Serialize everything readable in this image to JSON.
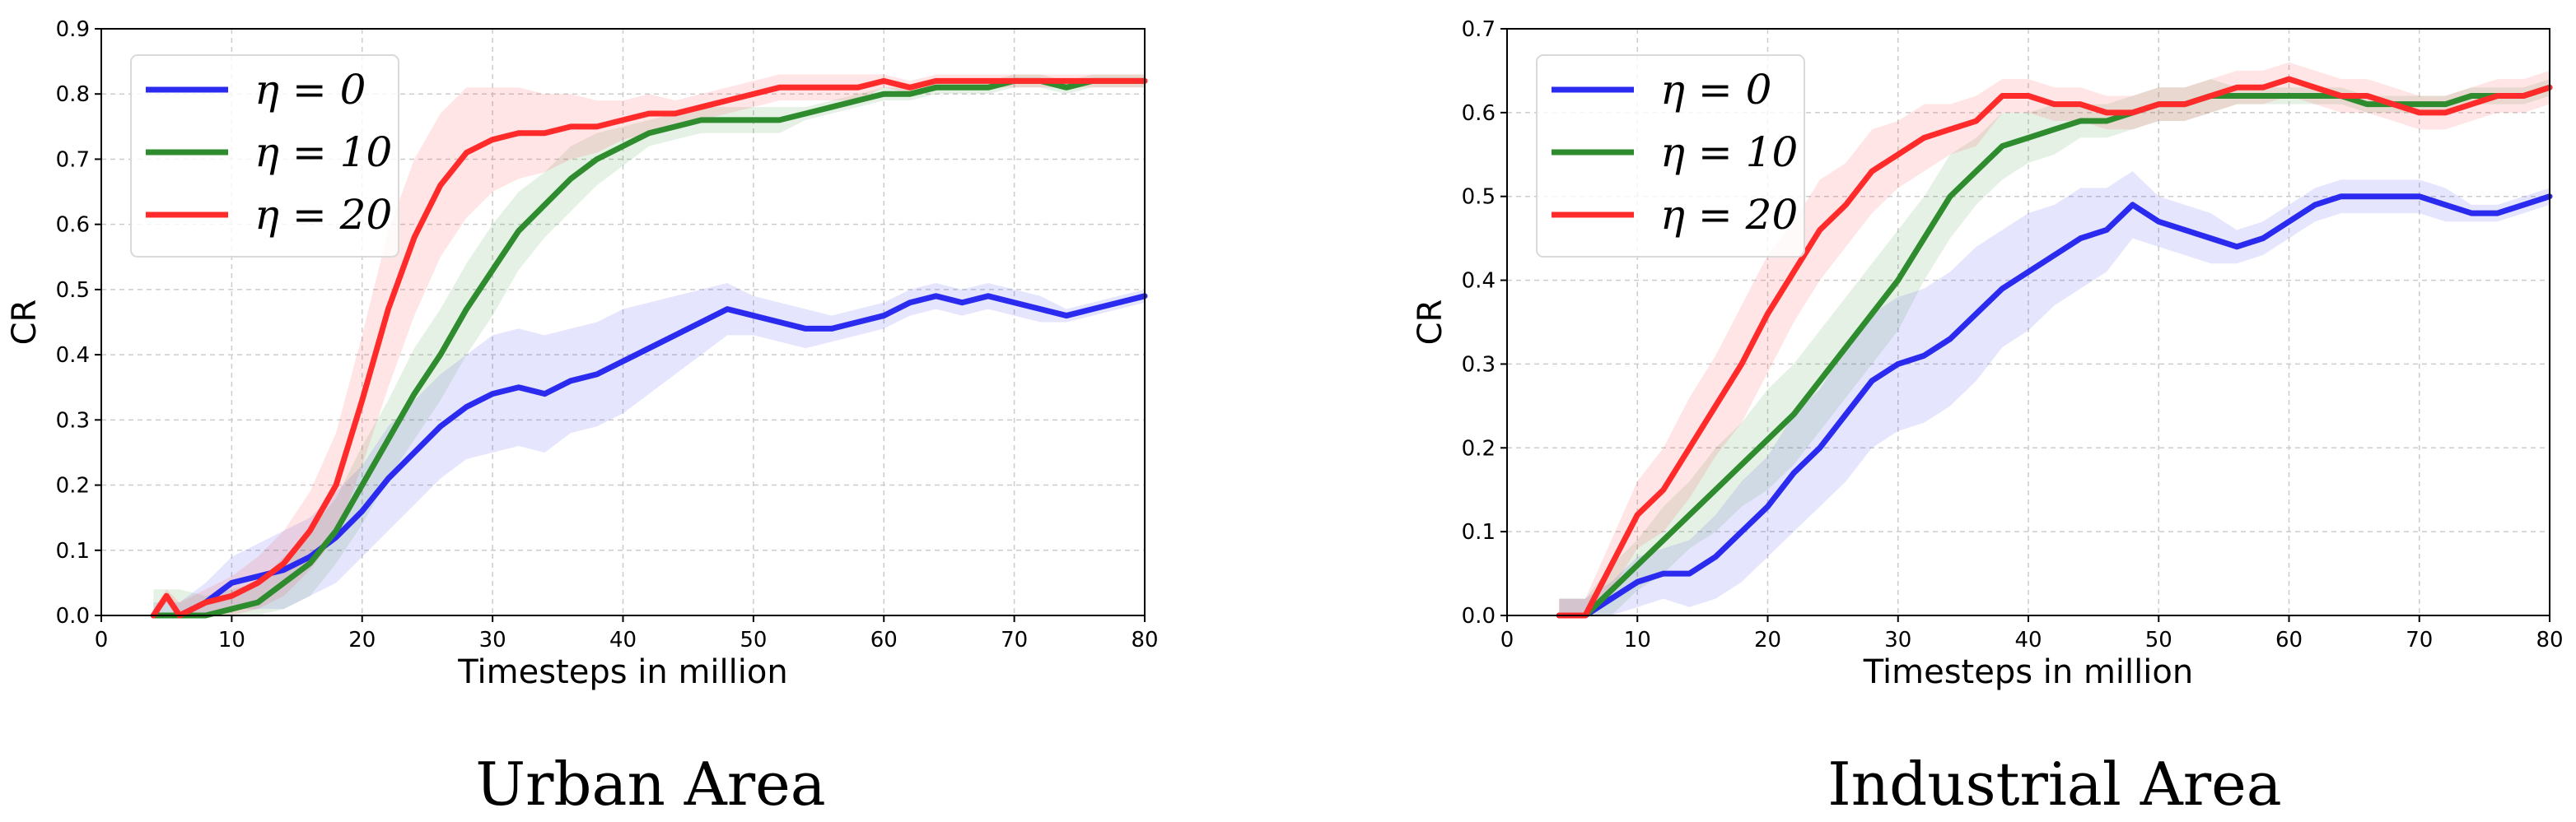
{
  "chart_data": [
    {
      "type": "line",
      "title": "Urban Area",
      "xlabel": "Timesteps in million",
      "ylabel": "CR",
      "xlim": [
        0,
        80
      ],
      "ylim": [
        0,
        0.9
      ],
      "xticks": [
        0,
        10,
        20,
        30,
        40,
        50,
        60,
        70,
        80
      ],
      "yticks": [
        0.0,
        0.1,
        0.2,
        0.3,
        0.4,
        0.5,
        0.6,
        0.7,
        0.8,
        0.9
      ],
      "grid": true,
      "legend": "top-left",
      "series": [
        {
          "name": "η = 0",
          "color": "#2b2bf0",
          "x": [
            4,
            6,
            8,
            10,
            12,
            14,
            16,
            18,
            20,
            22,
            24,
            26,
            28,
            30,
            32,
            34,
            36,
            38,
            40,
            42,
            44,
            46,
            48,
            50,
            52,
            54,
            56,
            58,
            60,
            62,
            64,
            66,
            68,
            70,
            72,
            74,
            76,
            78,
            80
          ],
          "y": [
            0.0,
            0.0,
            0.02,
            0.05,
            0.06,
            0.07,
            0.09,
            0.12,
            0.16,
            0.21,
            0.25,
            0.29,
            0.32,
            0.34,
            0.35,
            0.34,
            0.36,
            0.37,
            0.39,
            0.41,
            0.43,
            0.45,
            0.47,
            0.46,
            0.45,
            0.44,
            0.44,
            0.45,
            0.46,
            0.48,
            0.49,
            0.48,
            0.49,
            0.48,
            0.47,
            0.46,
            0.47,
            0.48,
            0.49
          ],
          "band": [
            0.02,
            0.02,
            0.03,
            0.04,
            0.05,
            0.06,
            0.06,
            0.07,
            0.07,
            0.08,
            0.08,
            0.08,
            0.08,
            0.09,
            0.09,
            0.09,
            0.08,
            0.08,
            0.08,
            0.07,
            0.06,
            0.05,
            0.04,
            0.03,
            0.03,
            0.03,
            0.02,
            0.02,
            0.02,
            0.02,
            0.02,
            0.02,
            0.02,
            0.02,
            0.02,
            0.01,
            0.01,
            0.01,
            0.01
          ]
        },
        {
          "name": "η = 10",
          "color": "#2e8b2e",
          "x": [
            4,
            6,
            8,
            10,
            12,
            14,
            16,
            18,
            20,
            22,
            24,
            26,
            28,
            30,
            32,
            34,
            36,
            38,
            40,
            42,
            44,
            46,
            48,
            50,
            52,
            54,
            56,
            58,
            60,
            62,
            64,
            66,
            68,
            70,
            72,
            74,
            76,
            78,
            80
          ],
          "y": [
            0.0,
            0.0,
            0.0,
            0.01,
            0.02,
            0.05,
            0.08,
            0.13,
            0.2,
            0.27,
            0.34,
            0.4,
            0.47,
            0.53,
            0.59,
            0.63,
            0.67,
            0.7,
            0.72,
            0.74,
            0.75,
            0.76,
            0.76,
            0.76,
            0.76,
            0.77,
            0.78,
            0.79,
            0.8,
            0.8,
            0.81,
            0.81,
            0.81,
            0.82,
            0.82,
            0.81,
            0.82,
            0.82,
            0.82
          ],
          "band": [
            0.04,
            0.04,
            0.03,
            0.03,
            0.03,
            0.04,
            0.05,
            0.05,
            0.06,
            0.06,
            0.07,
            0.07,
            0.07,
            0.07,
            0.06,
            0.05,
            0.05,
            0.04,
            0.03,
            0.02,
            0.02,
            0.02,
            0.02,
            0.02,
            0.02,
            0.01,
            0.01,
            0.01,
            0.01,
            0.01,
            0.01,
            0.01,
            0.01,
            0.01,
            0.01,
            0.01,
            0.01,
            0.01,
            0.01
          ]
        },
        {
          "name": "η = 20",
          "color": "#ff2b2b",
          "x": [
            4,
            5,
            6,
            8,
            10,
            12,
            14,
            16,
            18,
            20,
            22,
            24,
            26,
            28,
            30,
            32,
            34,
            36,
            38,
            40,
            42,
            44,
            46,
            48,
            50,
            52,
            54,
            56,
            58,
            60,
            62,
            64,
            66,
            68,
            70,
            72,
            74,
            76,
            78,
            80
          ],
          "y": [
            0.0,
            0.03,
            0.0,
            0.02,
            0.03,
            0.05,
            0.08,
            0.13,
            0.2,
            0.33,
            0.47,
            0.58,
            0.66,
            0.71,
            0.73,
            0.74,
            0.74,
            0.75,
            0.75,
            0.76,
            0.77,
            0.77,
            0.78,
            0.79,
            0.8,
            0.81,
            0.81,
            0.81,
            0.81,
            0.82,
            0.81,
            0.82,
            0.82,
            0.82,
            0.82,
            0.82,
            0.82,
            0.82,
            0.82,
            0.82
          ],
          "band": [
            0.01,
            0.01,
            0.02,
            0.02,
            0.03,
            0.04,
            0.05,
            0.06,
            0.08,
            0.1,
            0.12,
            0.12,
            0.11,
            0.1,
            0.08,
            0.07,
            0.06,
            0.05,
            0.04,
            0.03,
            0.03,
            0.02,
            0.02,
            0.02,
            0.02,
            0.02,
            0.02,
            0.02,
            0.02,
            0.01,
            0.01,
            0.01,
            0.01,
            0.01,
            0.01,
            0.01,
            0.01,
            0.01,
            0.01,
            0.01
          ]
        }
      ]
    },
    {
      "type": "line",
      "title": "Industrial Area",
      "xlabel": "Timesteps in million",
      "ylabel": "CR",
      "xlim": [
        0,
        80
      ],
      "ylim": [
        0,
        0.7
      ],
      "xticks": [
        0,
        10,
        20,
        30,
        40,
        50,
        60,
        70,
        80
      ],
      "yticks": [
        0.0,
        0.1,
        0.2,
        0.3,
        0.4,
        0.5,
        0.6,
        0.7
      ],
      "grid": true,
      "legend": "top-left",
      "series": [
        {
          "name": "η = 0",
          "color": "#2b2bf0",
          "x": [
            4,
            6,
            8,
            10,
            12,
            14,
            16,
            18,
            20,
            22,
            24,
            26,
            28,
            30,
            32,
            34,
            36,
            38,
            40,
            42,
            44,
            46,
            48,
            50,
            52,
            54,
            56,
            58,
            60,
            62,
            64,
            66,
            68,
            70,
            72,
            74,
            76,
            78,
            80
          ],
          "y": [
            0.0,
            0.0,
            0.02,
            0.04,
            0.05,
            0.05,
            0.07,
            0.1,
            0.13,
            0.17,
            0.2,
            0.24,
            0.28,
            0.3,
            0.31,
            0.33,
            0.36,
            0.39,
            0.41,
            0.43,
            0.45,
            0.46,
            0.49,
            0.47,
            0.46,
            0.45,
            0.44,
            0.45,
            0.47,
            0.49,
            0.5,
            0.5,
            0.5,
            0.5,
            0.49,
            0.48,
            0.48,
            0.49,
            0.5
          ],
          "band": [
            0.02,
            0.02,
            0.02,
            0.03,
            0.03,
            0.04,
            0.05,
            0.06,
            0.06,
            0.07,
            0.07,
            0.08,
            0.08,
            0.08,
            0.08,
            0.08,
            0.08,
            0.07,
            0.07,
            0.06,
            0.06,
            0.05,
            0.04,
            0.03,
            0.03,
            0.03,
            0.02,
            0.02,
            0.02,
            0.02,
            0.02,
            0.02,
            0.02,
            0.02,
            0.02,
            0.01,
            0.01,
            0.01,
            0.01
          ]
        },
        {
          "name": "η = 10",
          "color": "#2e8b2e",
          "x": [
            4,
            6,
            8,
            10,
            12,
            14,
            16,
            18,
            20,
            22,
            24,
            26,
            28,
            30,
            32,
            34,
            36,
            38,
            40,
            42,
            44,
            46,
            48,
            50,
            52,
            54,
            56,
            58,
            60,
            62,
            64,
            66,
            68,
            70,
            72,
            74,
            76,
            78,
            80
          ],
          "y": [
            0.0,
            0.0,
            0.03,
            0.06,
            0.09,
            0.12,
            0.15,
            0.18,
            0.21,
            0.24,
            0.28,
            0.32,
            0.36,
            0.4,
            0.45,
            0.5,
            0.53,
            0.56,
            0.57,
            0.58,
            0.59,
            0.59,
            0.6,
            0.61,
            0.61,
            0.62,
            0.62,
            0.62,
            0.62,
            0.62,
            0.62,
            0.61,
            0.61,
            0.61,
            0.61,
            0.62,
            0.62,
            0.62,
            0.63
          ],
          "band": [
            0.02,
            0.02,
            0.03,
            0.03,
            0.04,
            0.04,
            0.05,
            0.05,
            0.06,
            0.06,
            0.06,
            0.06,
            0.06,
            0.06,
            0.05,
            0.05,
            0.04,
            0.04,
            0.03,
            0.03,
            0.02,
            0.02,
            0.02,
            0.02,
            0.02,
            0.02,
            0.01,
            0.01,
            0.01,
            0.01,
            0.01,
            0.01,
            0.01,
            0.01,
            0.01,
            0.01,
            0.01,
            0.01,
            0.01
          ]
        },
        {
          "name": "η = 20",
          "color": "#ff2b2b",
          "x": [
            4,
            6,
            8,
            10,
            12,
            14,
            16,
            18,
            20,
            22,
            24,
            26,
            28,
            30,
            32,
            34,
            36,
            38,
            40,
            42,
            44,
            46,
            48,
            50,
            52,
            54,
            56,
            58,
            60,
            62,
            64,
            66,
            68,
            70,
            72,
            74,
            76,
            78,
            80
          ],
          "y": [
            0.0,
            0.0,
            0.06,
            0.12,
            0.15,
            0.2,
            0.25,
            0.3,
            0.36,
            0.41,
            0.46,
            0.49,
            0.53,
            0.55,
            0.57,
            0.58,
            0.59,
            0.62,
            0.62,
            0.61,
            0.61,
            0.6,
            0.6,
            0.61,
            0.61,
            0.62,
            0.63,
            0.63,
            0.64,
            0.63,
            0.62,
            0.62,
            0.61,
            0.6,
            0.6,
            0.61,
            0.62,
            0.62,
            0.63
          ],
          "band": [
            0.02,
            0.02,
            0.03,
            0.04,
            0.05,
            0.06,
            0.06,
            0.07,
            0.07,
            0.06,
            0.06,
            0.05,
            0.05,
            0.04,
            0.04,
            0.03,
            0.03,
            0.02,
            0.02,
            0.02,
            0.02,
            0.02,
            0.02,
            0.02,
            0.02,
            0.02,
            0.02,
            0.02,
            0.02,
            0.02,
            0.02,
            0.02,
            0.02,
            0.02,
            0.02,
            0.02,
            0.02,
            0.02,
            0.02
          ]
        }
      ]
    }
  ]
}
